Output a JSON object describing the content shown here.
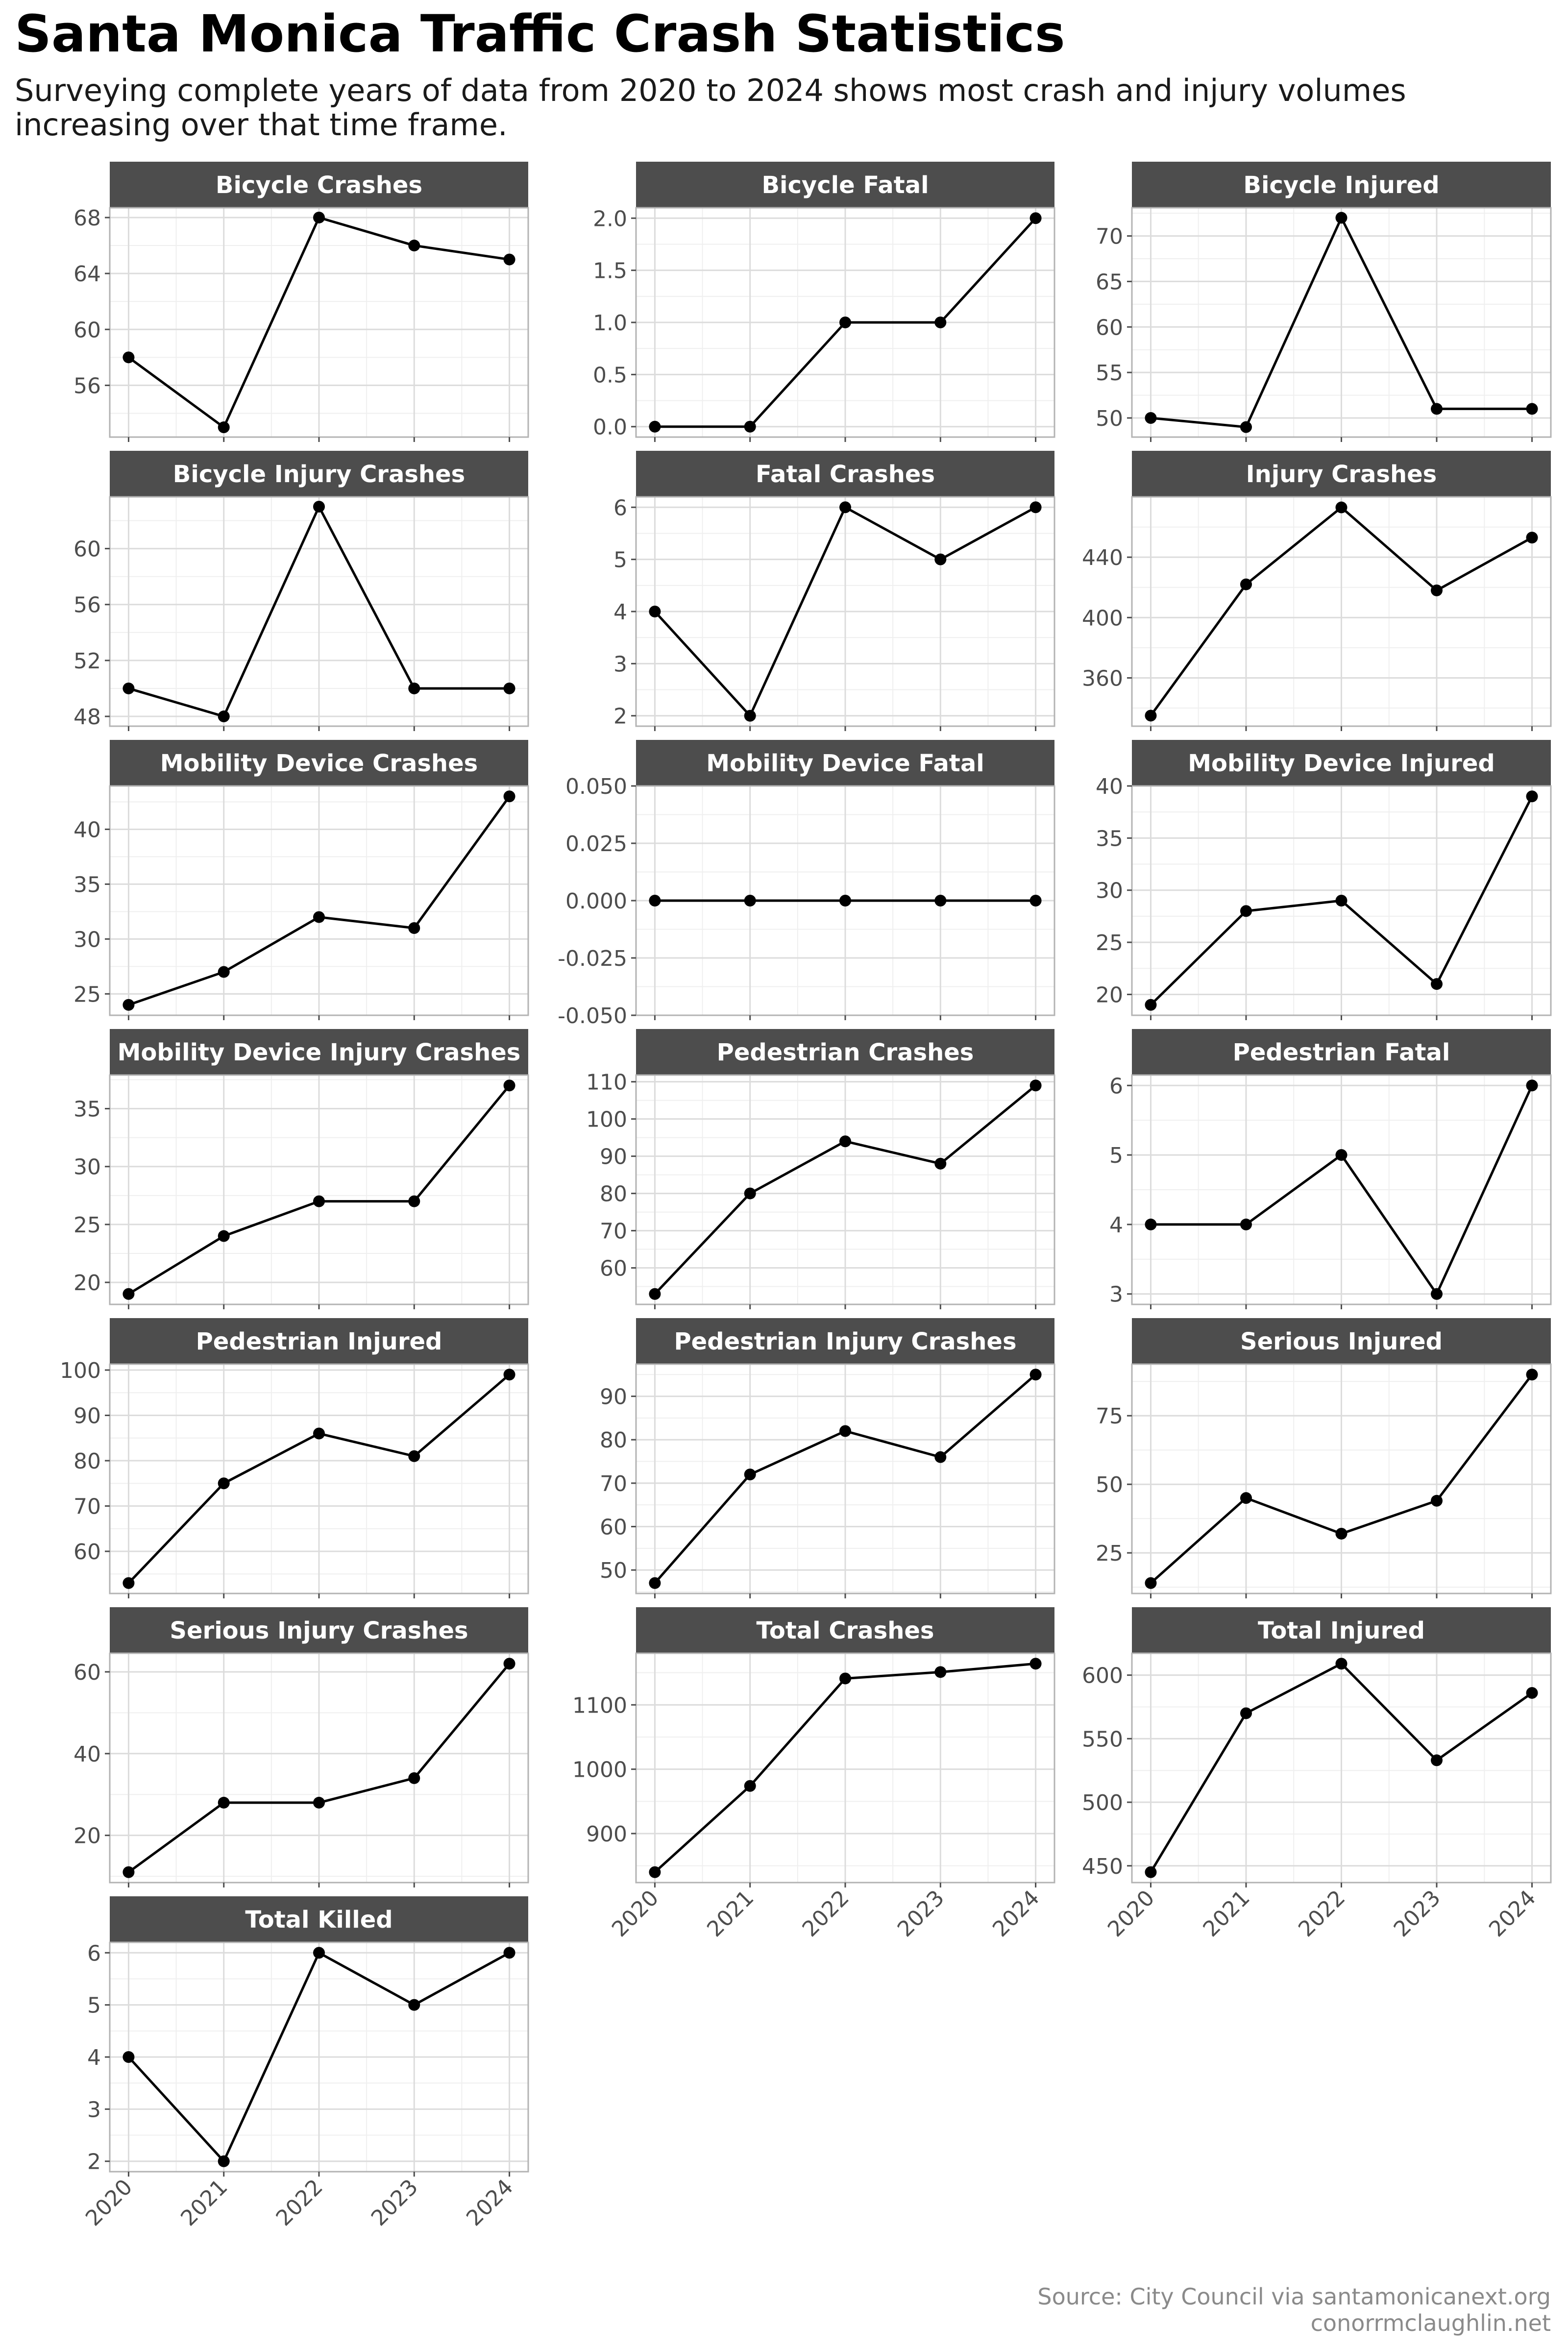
{
  "title": "Santa Monica Traffic Crash Statistics",
  "subtitle": "Surveying complete years of data from 2020 to 2024 shows most crash and injury volumes increasing over that time frame.",
  "caption": [
    "Source: City Council via santamonicanext.org",
    "conorrmclaughlin.net"
  ],
  "colors": {
    "strip_bg": "#4d4d4d",
    "strip_text": "#ffffff",
    "line": "#000000",
    "grid_major": "#dcdcdc",
    "grid_minor": "#efefef",
    "panel_border": "#b3b3b3",
    "axis_text": "#4d4d4d"
  },
  "chart_data": {
    "type": "line",
    "layout": "facet-wrap",
    "columns": 3,
    "x": [
      "2020",
      "2021",
      "2022",
      "2023",
      "2024"
    ],
    "grid": true,
    "panels": [
      {
        "title": "Bicycle Crashes",
        "values": [
          58,
          53,
          68,
          66,
          65
        ],
        "ylim": [
          52.3,
          68.7
        ],
        "ticks": [
          56,
          60,
          64,
          68
        ]
      },
      {
        "title": "Bicycle Fatal",
        "values": [
          0,
          0,
          1,
          1,
          2
        ],
        "ylim": [
          -0.1,
          2.1
        ],
        "ticks": [
          0.0,
          0.5,
          1.0,
          1.5,
          2.0
        ],
        "tick_labels": [
          "0.0",
          "0.5",
          "1.0",
          "1.5",
          "2.0"
        ]
      },
      {
        "title": "Bicycle Injured",
        "values": [
          50,
          49,
          72,
          51,
          51
        ],
        "ylim": [
          47.9,
          73.1
        ],
        "ticks": [
          50,
          55,
          60,
          65,
          70
        ]
      },
      {
        "title": "Bicycle Injury Crashes",
        "values": [
          50,
          48,
          63,
          50,
          50
        ],
        "ylim": [
          47.3,
          63.7
        ],
        "ticks": [
          48,
          52,
          56,
          60
        ]
      },
      {
        "title": "Fatal Crashes",
        "values": [
          4,
          2,
          6,
          5,
          6
        ],
        "ylim": [
          1.8,
          6.2
        ],
        "ticks": [
          2,
          3,
          4,
          5,
          6
        ]
      },
      {
        "title": "Injury Crashes",
        "values": [
          335,
          422,
          473,
          418,
          453
        ],
        "ylim": [
          328,
          480
        ],
        "ticks": [
          360,
          400,
          440
        ]
      },
      {
        "title": "Mobility Device Crashes",
        "values": [
          24,
          27,
          32,
          31,
          43
        ],
        "ylim": [
          23.05,
          43.95
        ],
        "ticks": [
          25,
          30,
          35,
          40
        ]
      },
      {
        "title": "Mobility Device Fatal",
        "values": [
          0,
          0,
          0,
          0,
          0
        ],
        "ylim": [
          -0.05,
          0.05
        ],
        "ticks": [
          -0.05,
          -0.025,
          0,
          0.025,
          0.05
        ],
        "tick_labels": [
          "-0.050",
          "-0.025",
          "0.000",
          "0.025",
          "0.050"
        ]
      },
      {
        "title": "Mobility Device Injured",
        "values": [
          19,
          28,
          29,
          21,
          39
        ],
        "ylim": [
          18,
          40
        ],
        "ticks": [
          20,
          25,
          30,
          35,
          40
        ]
      },
      {
        "title": "Mobility Device Injury Crashes",
        "values": [
          19,
          24,
          27,
          27,
          37
        ],
        "ylim": [
          18.1,
          37.9
        ],
        "ticks": [
          20,
          25,
          30,
          35
        ]
      },
      {
        "title": "Pedestrian Crashes",
        "values": [
          53,
          80,
          94,
          88,
          109
        ],
        "ylim": [
          50.2,
          111.8
        ],
        "ticks": [
          60,
          70,
          80,
          90,
          100,
          110
        ]
      },
      {
        "title": "Pedestrian Fatal",
        "values": [
          4,
          4,
          5,
          3,
          6
        ],
        "ylim": [
          2.85,
          6.15
        ],
        "ticks": [
          3,
          4,
          5,
          6
        ]
      },
      {
        "title": "Pedestrian Injured",
        "values": [
          53,
          75,
          86,
          81,
          99
        ],
        "ylim": [
          50.7,
          101.3
        ],
        "ticks": [
          60,
          70,
          80,
          90,
          100
        ]
      },
      {
        "title": "Pedestrian Injury Crashes",
        "values": [
          47,
          72,
          82,
          76,
          95
        ],
        "ylim": [
          44.6,
          97.4
        ],
        "ticks": [
          50,
          60,
          70,
          80,
          90
        ]
      },
      {
        "title": "Serious Injured",
        "values": [
          14,
          45,
          32,
          44,
          90
        ],
        "ylim": [
          10.2,
          93.8
        ],
        "ticks": [
          25,
          50,
          75
        ]
      },
      {
        "title": "Serious Injury Crashes",
        "values": [
          11,
          28,
          28,
          34,
          62
        ],
        "ylim": [
          8.45,
          64.55
        ],
        "ticks": [
          20,
          40,
          60
        ]
      },
      {
        "title": "Total Crashes",
        "values": [
          840,
          974,
          1141,
          1151,
          1164
        ],
        "ylim": [
          823.8,
          1180.2
        ],
        "ticks": [
          900,
          1000,
          1100
        ]
      },
      {
        "title": "Total Injured",
        "values": [
          445,
          570,
          609,
          533,
          586
        ],
        "ylim": [
          436.8,
          617.2
        ],
        "ticks": [
          450,
          500,
          550,
          600
        ]
      },
      {
        "title": "Total Killed",
        "values": [
          4,
          2,
          6,
          5,
          6
        ],
        "ylim": [
          1.8,
          6.2
        ],
        "ticks": [
          2,
          3,
          4,
          5,
          6
        ]
      }
    ]
  }
}
